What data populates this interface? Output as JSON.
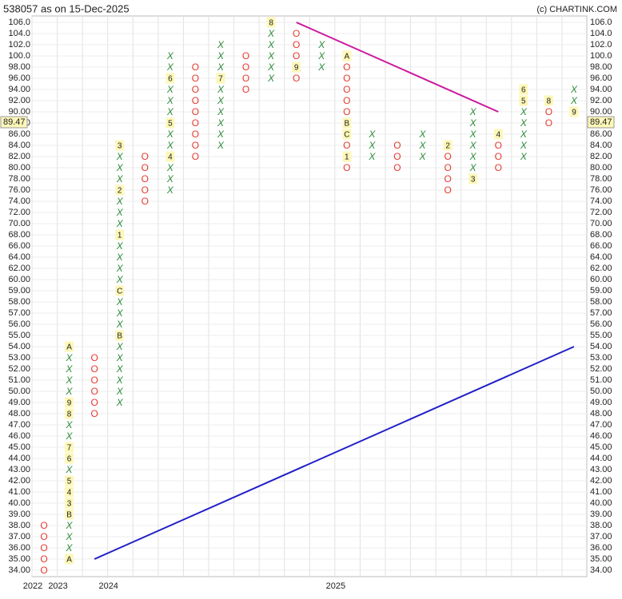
{
  "title": "538057 as on 15-Dec-2025",
  "credit": "(c) CHARTINK.COM",
  "levels": [
    "106.0",
    "104.0",
    "102.0",
    "100.0",
    "98.00",
    "96.00",
    "94.00",
    "92.00",
    "90.00",
    "88.00",
    "86.00",
    "84.00",
    "82.00",
    "80.00",
    "78.00",
    "76.00",
    "74.00",
    "72.00",
    "70.00",
    "68.00",
    "66.00",
    "64.00",
    "62.00",
    "60.00",
    "59.00",
    "58.00",
    "57.00",
    "56.00",
    "55.00",
    "54.00",
    "53.00",
    "52.00",
    "51.00",
    "50.00",
    "49.00",
    "48.00",
    "47.00",
    "46.00",
    "45.00",
    "44.00",
    "43.00",
    "42.00",
    "41.00",
    "40.00",
    "39.00",
    "38.00",
    "37.00",
    "36.00",
    "35.00",
    "34.00"
  ],
  "current_price": "89.47",
  "columns": [
    {
      "kind": "O",
      "top": "38.00",
      "boxes": [
        "O",
        "O",
        "O",
        "O",
        "O"
      ]
    },
    {
      "kind": "X",
      "top": "54.00",
      "boxes": [
        "A",
        "X",
        "X",
        "X",
        "X",
        "9",
        "8",
        "X",
        "X",
        "7",
        "6",
        "X",
        "5",
        "4",
        "3",
        "B",
        "X",
        "X",
        "X",
        "A"
      ]
    },
    {
      "kind": "O",
      "top": "53.00",
      "boxes": [
        "O",
        "O",
        "O",
        "O",
        "O",
        "O"
      ]
    },
    {
      "kind": "X",
      "top": "84.00",
      "boxes": [
        "3",
        "X",
        "X",
        "X",
        "2",
        "X",
        "X",
        "X",
        "1",
        "X",
        "X",
        "X",
        "X",
        "C",
        "X",
        "X",
        "X",
        "B",
        "X",
        "X",
        "X",
        "X",
        "X",
        "X"
      ]
    },
    {
      "kind": "O",
      "top": "82.00",
      "boxes": [
        "O",
        "O",
        "O",
        "O",
        "O"
      ]
    },
    {
      "kind": "X",
      "top": "100.0",
      "boxes": [
        "X",
        "X",
        "6",
        "X",
        "X",
        "X",
        "5",
        "X",
        "X",
        "4",
        "X",
        "X",
        "X"
      ]
    },
    {
      "kind": "O",
      "top": "98.00",
      "boxes": [
        "O",
        "O",
        "O",
        "O",
        "O",
        "O",
        "O",
        "O",
        "O"
      ]
    },
    {
      "kind": "X",
      "top": "102.0",
      "boxes": [
        "X",
        "X",
        "X",
        "7",
        "X",
        "X",
        "X",
        "X",
        "X",
        "X"
      ]
    },
    {
      "kind": "O",
      "top": "100.0",
      "boxes": [
        "O",
        "O",
        "O",
        "O"
      ]
    },
    {
      "kind": "X",
      "top": "106.0",
      "boxes": [
        "8",
        "X",
        "X",
        "X",
        "X",
        "X"
      ]
    },
    {
      "kind": "O",
      "top": "104.0",
      "boxes": [
        "O",
        "O",
        "O",
        "9",
        "O"
      ]
    },
    {
      "kind": "X",
      "top": "102.0",
      "boxes": [
        "X",
        "X",
        "X"
      ]
    },
    {
      "kind": "O",
      "top": "100.0",
      "boxes": [
        "A",
        "O",
        "O",
        "O",
        "O",
        "O",
        "B",
        "C",
        "O",
        "1",
        "O"
      ]
    },
    {
      "kind": "X",
      "top": "86.00",
      "boxes": [
        "X",
        "X",
        "X"
      ]
    },
    {
      "kind": "O",
      "top": "84.00",
      "boxes": [
        "O",
        "O",
        "O"
      ]
    },
    {
      "kind": "X",
      "top": "86.00",
      "boxes": [
        "X",
        "X",
        "X"
      ]
    },
    {
      "kind": "O",
      "top": "84.00",
      "boxes": [
        "2",
        "O",
        "O",
        "O",
        "O"
      ]
    },
    {
      "kind": "X",
      "top": "90.00",
      "boxes": [
        "X",
        "X",
        "X",
        "X",
        "X",
        "X",
        "3"
      ]
    },
    {
      "kind": "O",
      "top": "86.00",
      "boxes": [
        "4",
        "O",
        "O",
        "O"
      ]
    },
    {
      "kind": "X",
      "top": "94.00",
      "boxes": [
        "6",
        "5",
        "X",
        "X",
        "X",
        "X",
        "X"
      ]
    },
    {
      "kind": "O",
      "top": "92.00",
      "boxes": [
        "8",
        "O",
        "O"
      ]
    },
    {
      "kind": "X",
      "top": "94.00",
      "boxes": [
        "X",
        "X",
        "9"
      ]
    }
  ],
  "years": [
    {
      "label": "2022",
      "column": 0
    },
    {
      "label": "2023",
      "column": 1
    },
    {
      "label": "2024",
      "column": 3
    },
    {
      "label": "2025",
      "column": 12
    }
  ],
  "trendlines": [
    {
      "color": "#cc1a9e",
      "from": {
        "column": 10,
        "level": "106.0"
      },
      "to": {
        "column": 18,
        "level": "90.00"
      }
    },
    {
      "color": "#2020c8",
      "from": {
        "column": 2,
        "level": "35.00"
      },
      "to": {
        "column": 21,
        "level": "54.00"
      }
    }
  ]
}
